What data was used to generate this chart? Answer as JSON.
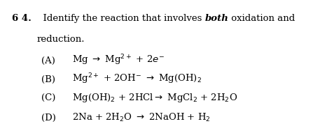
{
  "background_color": "#ffffff",
  "q_num": "6 4.",
  "q_line1_pre": "  Identify the reaction that involves ",
  "q_line1_bold_italic": "both",
  "q_line1_post": " oxidation and",
  "q_line2": "reduction.",
  "options": [
    {
      "label": "(A)",
      "latex": "Mg $\\rightarrow$ Mg$^{2+}$ + 2$e^{-}$"
    },
    {
      "label": "(B)",
      "latex": "Mg$^{2+}$ + 2OH$^{-}$ $\\rightarrow$ Mg(OH)$_2$"
    },
    {
      "label": "(C)",
      "latex": "Mg(OH)$_2$ + 2HCl$\\rightarrow$ MgCl$_2$ + 2H$_2$O"
    },
    {
      "label": "(D)",
      "latex": "2Na + 2H$_2$O $\\rightarrow$ 2NaOH + H$_2$"
    }
  ],
  "fig_width": 4.57,
  "fig_height": 1.91,
  "dpi": 100,
  "base_fs": 9.5,
  "label_fs": 9.5,
  "q_num_fs": 9.5
}
